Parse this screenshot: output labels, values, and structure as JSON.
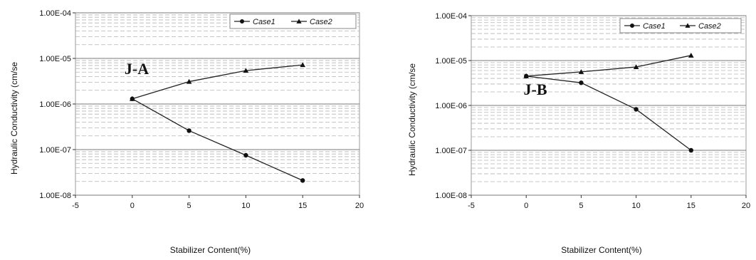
{
  "chart_data": [
    {
      "type": "line",
      "panel_label": "J-A",
      "xlabel": "Stabilizer Content(%)",
      "ylabel": "Hydraulic Conductivity (cm/se",
      "xlim": [
        -5,
        20
      ],
      "x_ticks": [
        "-5",
        "0",
        "5",
        "10",
        "15",
        "20"
      ],
      "x_tick_values": [
        -5,
        0,
        5,
        10,
        15,
        20
      ],
      "ylim": [
        1e-08,
        0.0001
      ],
      "y_scale": "log",
      "y_ticks": [
        "1.00E-04",
        "1.00E-05",
        "1.00E-06",
        "1.00E-07",
        "1.00E-08"
      ],
      "y_tick_values": [
        0.0001,
        1e-05,
        1e-06,
        1e-07,
        1e-08
      ],
      "grid": "horizontal",
      "legend_position": "top-right",
      "x": [
        0,
        5,
        10,
        15
      ],
      "series": [
        {
          "name": "Case1",
          "marker": "circle",
          "values": [
            1.3e-06,
            2.6e-07,
            7.5e-08,
            2.1e-08
          ]
        },
        {
          "name": "Case2",
          "marker": "triangle",
          "values": [
            1.3e-06,
            3.1e-06,
            5.4e-06,
            7.2e-06
          ]
        }
      ]
    },
    {
      "type": "line",
      "panel_label": "J-B",
      "xlabel": "Stabilizer Content(%)",
      "ylabel": "Hydraulic Conductivity (cm/se",
      "xlim": [
        -5,
        20
      ],
      "x_ticks": [
        "-5",
        "0",
        "5",
        "10",
        "15",
        "20"
      ],
      "x_tick_values": [
        -5,
        0,
        5,
        10,
        15,
        20
      ],
      "ylim": [
        1e-08,
        0.0001
      ],
      "y_scale": "log",
      "y_ticks": [
        "1.00E-04",
        "1.00E-05",
        "1.00E-06",
        "1.00E-07",
        "1.00E-08"
      ],
      "y_tick_values": [
        0.0001,
        1e-05,
        1e-06,
        1e-07,
        1e-08
      ],
      "grid": "horizontal",
      "legend_position": "top-right",
      "x": [
        0,
        5,
        10,
        15
      ],
      "series": [
        {
          "name": "Case1",
          "marker": "circle",
          "values": [
            4.5e-06,
            3.2e-06,
            8.2e-07,
            1e-07
          ]
        },
        {
          "name": "Case2",
          "marker": "triangle",
          "values": [
            4.5e-06,
            5.6e-06,
            7.2e-06,
            1.3e-05
          ]
        }
      ]
    }
  ]
}
